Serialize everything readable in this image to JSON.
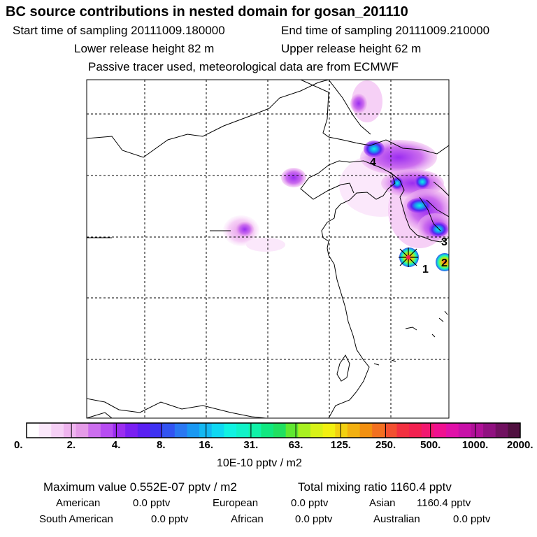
{
  "header": {
    "title": "BC  source contributions in nested domain for gosan_201110",
    "start_label": "Start time of sampling 20111009.180000",
    "end_label": "End time of sampling 20111009.210000",
    "lower_label": "Lower release height   82 m",
    "upper_label": "Upper release height   62 m",
    "tracer_note": "Passive tracer used, meteorological data are from ECMWF"
  },
  "map": {
    "receptor_markers": [
      {
        "label": "1"
      },
      {
        "label": "2"
      },
      {
        "label": "3"
      },
      {
        "label": "4"
      }
    ]
  },
  "colorbar": {
    "tick_labels": [
      "0.",
      "2.",
      "4.",
      "8.",
      "16.",
      "31.",
      "63.",
      "125.",
      "250.",
      "500.",
      "1000.",
      "2000."
    ],
    "units": "10E-10 pptv / m2",
    "colors": [
      "#ffffff",
      "#fbe8fb",
      "#f6d0f6",
      "#efb4ef",
      "#e59be8",
      "#cc6eee",
      "#b74cf2",
      "#9b2df0",
      "#7a1ff2",
      "#5a20f2",
      "#3e31f2",
      "#3254f2",
      "#2a78f2",
      "#1a98f2",
      "#14b8f2",
      "#0fd8f2",
      "#10f2e2",
      "#10f2c8",
      "#10f2a8",
      "#10e880",
      "#20e060",
      "#60e830",
      "#a8f020",
      "#d8f218",
      "#f2f010",
      "#f2d010",
      "#f2b010",
      "#f29010",
      "#f27020",
      "#f25030",
      "#f23040",
      "#f22050",
      "#f21870",
      "#f01090",
      "#e010a8",
      "#c810a8",
      "#b01098",
      "#901080",
      "#701060",
      "#501040"
    ]
  },
  "stats": {
    "max_value": "Maximum value  0.552E-07 pptv / m2",
    "total_mixing": "Total mixing ratio     1160.4 pptv",
    "american_label": "American",
    "american_value": "0.0 pptv",
    "european_label": "European",
    "european_value": "0.0 pptv",
    "asian_label": "Asian",
    "asian_value": "1160.4 pptv",
    "south_american_label": "South American",
    "south_american_value": "0.0 pptv",
    "african_label": "African",
    "african_value": "0.0 pptv",
    "australian_label": "Australian",
    "australian_value": "0.0 pptv"
  }
}
